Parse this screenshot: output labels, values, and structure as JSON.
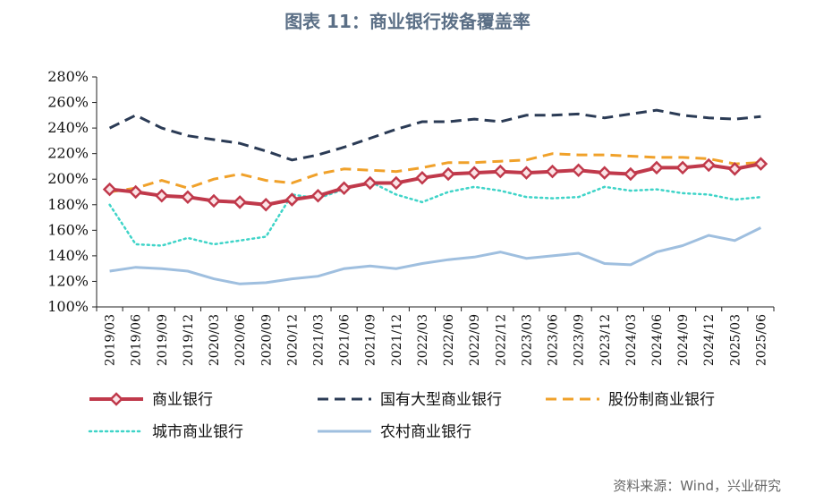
{
  "page": {
    "title": "图表 11：商业银行拨备覆盖率",
    "source": "资料来源：Wind，兴业研究"
  },
  "chart_data": {
    "type": "line",
    "title": "图表 11：商业银行拨备覆盖率",
    "xlabel": "",
    "ylabel": "",
    "ylim": [
      100,
      280
    ],
    "y_ticks": [
      "100%",
      "120%",
      "140%",
      "160%",
      "180%",
      "200%",
      "220%",
      "240%",
      "260%",
      "280%"
    ],
    "grid": false,
    "legend_position": "bottom",
    "categories": [
      "2019/03",
      "2019/06",
      "2019/09",
      "2019/12",
      "2020/03",
      "2020/06",
      "2020/09",
      "2020/12",
      "2021/03",
      "2021/06",
      "2021/09",
      "2021/12",
      "2022/03",
      "2022/06",
      "2022/09",
      "2022/12",
      "2023/03",
      "2023/06",
      "2023/09",
      "2023/12",
      "2024/03",
      "2024/06",
      "2024/09",
      "2024/12",
      "2025/03",
      "2025/06"
    ],
    "series": [
      {
        "name": "商业银行",
        "color": "#c0394b",
        "style": "solid-diamond",
        "values": [
          192,
          190,
          187,
          186,
          183,
          182,
          180,
          184,
          187,
          193,
          197,
          197,
          201,
          204,
          205,
          206,
          205,
          206,
          207,
          205,
          204,
          209,
          209,
          211,
          208,
          212
        ]
      },
      {
        "name": "国有大型商业银行",
        "color": "#2b3b55",
        "style": "dash",
        "values": [
          240,
          250,
          240,
          234,
          231,
          228,
          222,
          215,
          219,
          225,
          232,
          239,
          245,
          245,
          247,
          245,
          250,
          250,
          251,
          248,
          251,
          254,
          250,
          248,
          247,
          249
        ]
      },
      {
        "name": "股份制商业银行",
        "color": "#f0a12a",
        "style": "dash",
        "values": [
          190,
          193,
          199,
          193,
          200,
          204,
          199,
          197,
          204,
          208,
          207,
          206,
          209,
          213,
          213,
          214,
          215,
          220,
          219,
          219,
          218,
          217,
          217,
          216,
          212,
          213
        ]
      },
      {
        "name": "城市商业银行",
        "color": "#3fd4c8",
        "style": "dot",
        "values": [
          180,
          149,
          148,
          154,
          149,
          152,
          155,
          188,
          185,
          192,
          198,
          188,
          182,
          190,
          194,
          191,
          186,
          185,
          186,
          194,
          191,
          192,
          189,
          188,
          184,
          186
        ]
      },
      {
        "name": "农村商业银行",
        "color": "#9fbfdf",
        "style": "solid",
        "values": [
          128,
          131,
          130,
          128,
          122,
          118,
          119,
          122,
          124,
          130,
          132,
          130,
          134,
          137,
          139,
          143,
          138,
          140,
          142,
          134,
          133,
          143,
          148,
          156,
          152,
          162
        ]
      }
    ]
  }
}
